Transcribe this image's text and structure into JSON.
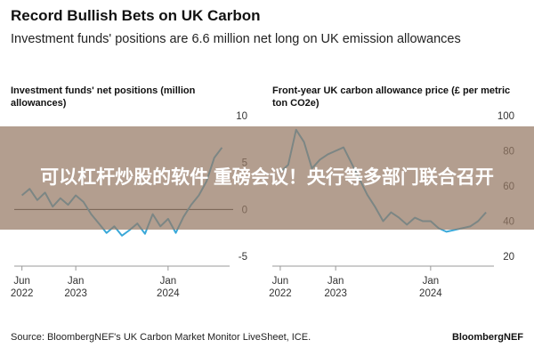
{
  "header": {
    "title": "Record Bullish Bets on UK Carbon",
    "subtitle": "Investment funds' positions are 6.6 million net long on UK emission allowances"
  },
  "footer": {
    "source": "Source: BloombergNEF's UK Carbon Market Monitor LiveSheet, ICE.",
    "brand": "BloombergNEF"
  },
  "overlay": {
    "text": "可以杠杆炒股的软件 重磅会议！央行等多部门联合召开"
  },
  "colors": {
    "series": "#3aa8d8",
    "zero_line": "#222222",
    "axis": "#999999",
    "overlay": "#96786488"
  },
  "chart_data": [
    {
      "type": "line",
      "title": "Investment funds' net positions (million allowances)",
      "y_ticks": [
        "10",
        "5",
        "0",
        "-5"
      ],
      "ylim": [
        -5,
        10
      ],
      "x_ticks": [
        {
          "label": [
            "Jun",
            "2022"
          ],
          "x": "2022-06"
        },
        {
          "label": [
            "Jan",
            "2023"
          ],
          "x": "2023-01"
        },
        {
          "label": [
            "Jan",
            "2024"
          ],
          "x": "2024-01"
        }
      ],
      "xlim": [
        "2022-05",
        "2024-09"
      ],
      "series": [
        {
          "x": [
            "2022-06",
            "2022-07",
            "2022-08",
            "2022-09",
            "2022-10",
            "2022-11",
            "2022-12",
            "2023-01",
            "2023-02",
            "2023-03",
            "2023-04",
            "2023-05",
            "2023-06",
            "2023-07",
            "2023-08",
            "2023-09",
            "2023-10",
            "2023-11",
            "2023-12",
            "2024-01",
            "2024-02",
            "2024-03",
            "2024-04",
            "2024-05",
            "2024-06",
            "2024-07",
            "2024-08"
          ],
          "values": [
            1.5,
            2.2,
            1.0,
            1.8,
            0.3,
            1.2,
            0.5,
            1.5,
            0.8,
            -0.5,
            -1.5,
            -2.5,
            -1.8,
            -2.8,
            -2.2,
            -1.5,
            -2.6,
            -0.5,
            -1.8,
            -1.0,
            -2.5,
            -0.8,
            0.5,
            1.5,
            3.0,
            5.5,
            6.6
          ]
        }
      ]
    },
    {
      "type": "line",
      "title": "Front-year UK carbon allowance price (£ per metric ton CO2e)",
      "y_ticks": [
        "100",
        "80",
        "60",
        "40",
        "20"
      ],
      "ylim": [
        20,
        100
      ],
      "x_ticks": [
        {
          "label": [
            "Jun",
            "2022"
          ],
          "x": "2022-06"
        },
        {
          "label": [
            "Jan",
            "2023"
          ],
          "x": "2023-01"
        },
        {
          "label": [
            "Jan",
            "2024"
          ],
          "x": "2024-01"
        }
      ],
      "xlim": [
        "2022-05",
        "2024-09"
      ],
      "series": [
        {
          "x": [
            "2022-06",
            "2022-07",
            "2022-08",
            "2022-09",
            "2022-10",
            "2022-11",
            "2022-12",
            "2023-01",
            "2023-02",
            "2023-03",
            "2023-04",
            "2023-05",
            "2023-06",
            "2023-07",
            "2023-08",
            "2023-09",
            "2023-10",
            "2023-11",
            "2023-12",
            "2024-01",
            "2024-02",
            "2024-03",
            "2024-04",
            "2024-05",
            "2024-06",
            "2024-07",
            "2024-08"
          ],
          "values": [
            68,
            72,
            92,
            85,
            70,
            75,
            78,
            80,
            82,
            73,
            64,
            55,
            48,
            40,
            45,
            42,
            38,
            42,
            40,
            40,
            36,
            34,
            35,
            36,
            37,
            40,
            45
          ]
        }
      ]
    }
  ]
}
